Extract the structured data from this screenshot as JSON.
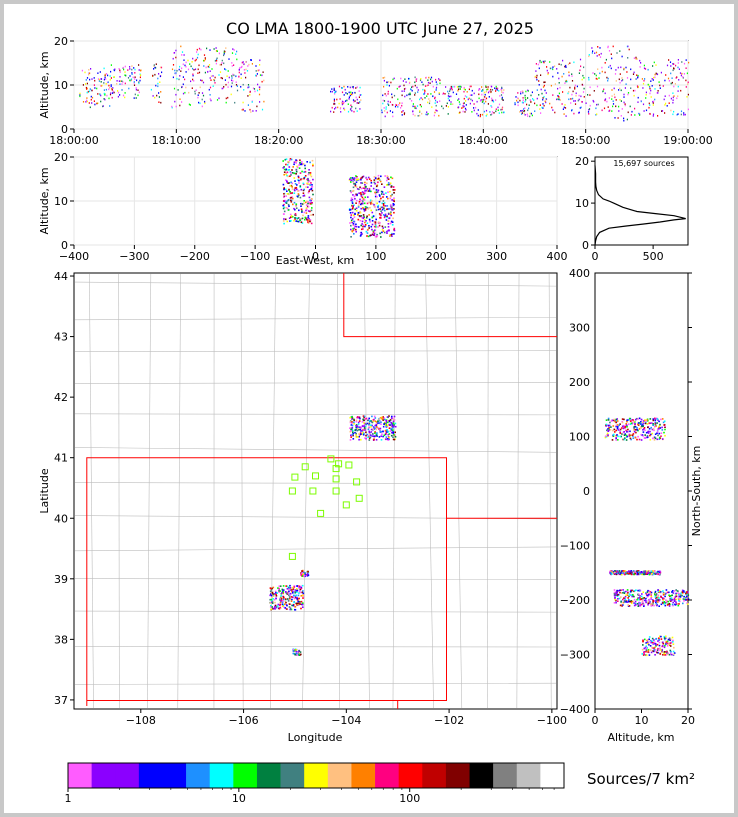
{
  "title": "CO LMA 1800-1900 UTC June 27, 2025",
  "colors": {
    "frame": "#c8c8c8",
    "state_border": "#ff0000",
    "county_border": "#bdbdbd",
    "station_marker": "#7cfc00",
    "histogram_line": "#000000"
  },
  "chart_data": [
    {
      "id": "time_altitude",
      "type": "scatter",
      "ylabel": "Altitude, km",
      "xlabel": "",
      "xlim": [
        "18:00:00",
        "19:00:00"
      ],
      "ylim": [
        0,
        20
      ],
      "xticks": [
        "18:00:00",
        "18:10:00",
        "18:20:00",
        "18:30:00",
        "18:40:00",
        "18:50:00",
        "19:00:00"
      ],
      "yticks": [
        0,
        10,
        20
      ],
      "grid": true,
      "clusters": [
        {
          "t0": 0.5,
          "t1": 3.5,
          "alt": [
            5,
            14
          ]
        },
        {
          "t0": 3.5,
          "t1": 6.5,
          "alt": [
            7,
            15
          ]
        },
        {
          "t0": 7.5,
          "t1": 8.5,
          "alt": [
            6,
            15
          ]
        },
        {
          "t0": 9.5,
          "t1": 13,
          "alt": [
            5,
            19
          ]
        },
        {
          "t0": 13,
          "t1": 16,
          "alt": [
            6,
            19
          ]
        },
        {
          "t0": 16,
          "t1": 18.5,
          "alt": [
            4,
            16
          ]
        },
        {
          "t0": 25,
          "t1": 28,
          "alt": [
            4,
            10
          ]
        },
        {
          "t0": 30,
          "t1": 36,
          "alt": [
            3,
            12
          ]
        },
        {
          "t0": 36,
          "t1": 42,
          "alt": [
            3,
            10
          ]
        },
        {
          "t0": 43,
          "t1": 45,
          "alt": [
            3,
            9
          ]
        },
        {
          "t0": 45,
          "t1": 50,
          "alt": [
            3,
            16
          ]
        },
        {
          "t0": 50,
          "t1": 55,
          "alt": [
            2,
            19
          ]
        },
        {
          "t0": 55,
          "t1": 60,
          "alt": [
            3,
            16
          ]
        }
      ]
    },
    {
      "id": "eastwest_altitude",
      "type": "scatter",
      "xlabel": "East-West, km",
      "ylabel": "Altitude, km",
      "xlim": [
        -400,
        400
      ],
      "ylim": [
        0,
        20
      ],
      "xticks": [
        -400,
        -300,
        -200,
        -100,
        0,
        100,
        200,
        300,
        400
      ],
      "yticks": [
        0,
        10,
        20
      ],
      "grid": true,
      "clusters": [
        {
          "x0": -55,
          "x1": -5,
          "alt": [
            5,
            20
          ]
        },
        {
          "x0": 55,
          "x1": 130,
          "alt": [
            2,
            16
          ]
        }
      ]
    },
    {
      "id": "altitude_histogram",
      "type": "line",
      "annotation": "15,697 sources",
      "xlim": [
        0,
        800
      ],
      "ylim": [
        0,
        21
      ],
      "xticks": [
        0,
        500
      ],
      "yticks": [
        0,
        10,
        20
      ],
      "x": [
        0,
        5,
        15,
        40,
        120,
        260,
        420,
        560,
        680,
        780,
        680,
        520,
        360,
        240,
        160,
        120,
        70,
        30,
        15,
        8,
        5,
        5,
        0
      ],
      "y": [
        0,
        1,
        2,
        3,
        4,
        4.5,
        5,
        5.5,
        6,
        6.3,
        7,
        7.5,
        8,
        9,
        10,
        10.5,
        11,
        12,
        13,
        14,
        15,
        17,
        19
      ]
    },
    {
      "id": "plan_view",
      "type": "scatter",
      "xlabel": "Longitude",
      "ylabel": "Latitude",
      "xlim": [
        -109.3,
        -99.9
      ],
      "ylim": [
        36.85,
        44.05
      ],
      "xticks": [
        -108,
        -106,
        -104,
        -102,
        -100
      ],
      "yticks": [
        37,
        38,
        39,
        40,
        41,
        42,
        43,
        44
      ],
      "stations": [
        {
          "lon": -104.8,
          "lat": 40.85
        },
        {
          "lon": -104.15,
          "lat": 40.9
        },
        {
          "lon": -103.95,
          "lat": 40.88
        },
        {
          "lon": -105.0,
          "lat": 40.68
        },
        {
          "lon": -104.6,
          "lat": 40.7
        },
        {
          "lon": -104.2,
          "lat": 40.65
        },
        {
          "lon": -104.2,
          "lat": 40.82
        },
        {
          "lon": -103.8,
          "lat": 40.6
        },
        {
          "lon": -105.05,
          "lat": 40.45
        },
        {
          "lon": -104.65,
          "lat": 40.45
        },
        {
          "lon": -104.2,
          "lat": 40.45
        },
        {
          "lon": -103.75,
          "lat": 40.33
        },
        {
          "lon": -104.0,
          "lat": 40.22
        },
        {
          "lon": -104.5,
          "lat": 40.08
        },
        {
          "lon": -104.3,
          "lat": 40.98
        },
        {
          "lon": -105.05,
          "lat": 39.37
        }
      ],
      "clusters": [
        {
          "lon0": -103.95,
          "lon1": -103.05,
          "lat0": 41.3,
          "lat1": 41.7
        },
        {
          "lon0": -105.5,
          "lon1": -104.85,
          "lat0": 38.5,
          "lat1": 38.9
        },
        {
          "lon0": -104.9,
          "lon1": -104.75,
          "lat0": 39.05,
          "lat1": 39.15
        },
        {
          "lon0": -105.05,
          "lon1": -104.9,
          "lat0": 37.75,
          "lat1": 37.85
        }
      ]
    },
    {
      "id": "altitude_northsouth",
      "type": "scatter",
      "xlabel": "Altitude, km",
      "ylabel": "North-South, km",
      "xlim": [
        0,
        20
      ],
      "ylim": [
        -400,
        400
      ],
      "xticks": [
        0,
        10,
        20
      ],
      "yticks": [
        -400,
        -300,
        -200,
        -100,
        0,
        100,
        200,
        300,
        400
      ],
      "clusters": [
        {
          "a0": 2,
          "a1": 15,
          "ns0": 95,
          "ns1": 135
        },
        {
          "a0": 4,
          "a1": 20,
          "ns0": -210,
          "ns1": -180
        },
        {
          "a0": 3,
          "a1": 14,
          "ns0": -152,
          "ns1": -145
        },
        {
          "a0": 10,
          "a1": 17,
          "ns0": -300,
          "ns1": -265
        }
      ]
    }
  ],
  "colorbar": {
    "label": "Sources/7 km²",
    "ticks": [
      "1",
      "10",
      "100"
    ],
    "colors": [
      "#ff5cff",
      "#8b00ff",
      "#8b00ff",
      "#0000ff",
      "#0000ff",
      "#1e90ff",
      "#00ffff",
      "#00ff00",
      "#008040",
      "#408080",
      "#ffff00",
      "#ffc080",
      "#ff8000",
      "#ff0080",
      "#ff0000",
      "#c00000",
      "#800000",
      "#000000",
      "#808080",
      "#c0c0c0",
      "#ffffff"
    ]
  }
}
